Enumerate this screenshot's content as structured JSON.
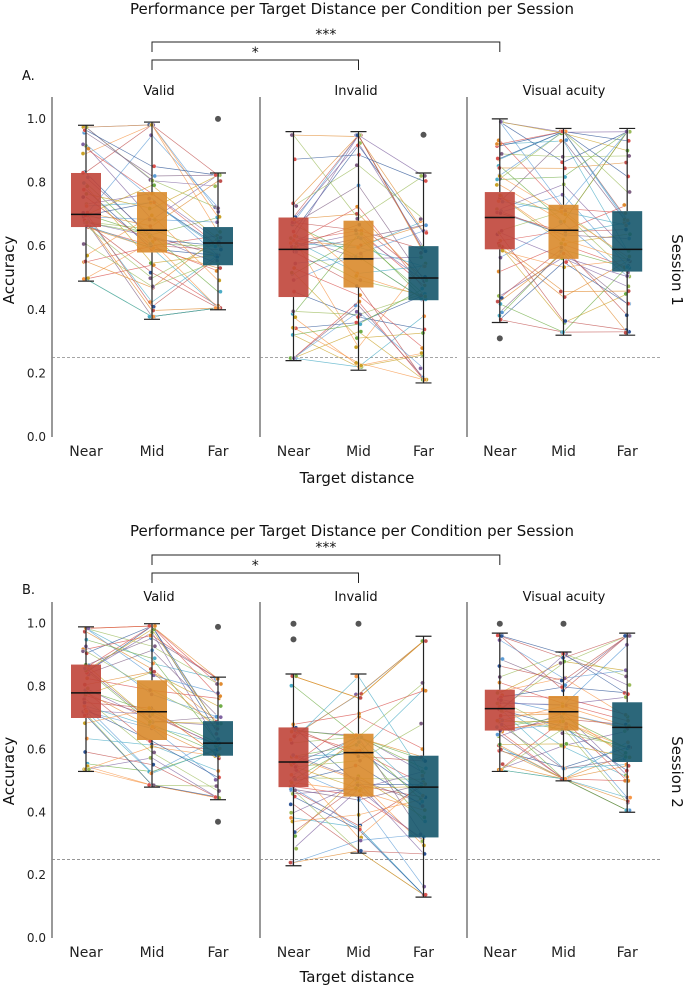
{
  "chart_data": [
    {
      "panel_label": "A.",
      "type": "box",
      "title": "Performance per Target Distance per Condition per Session",
      "xlabel": "Target distance",
      "ylabel": "Accuracy",
      "session_label": "Session 1",
      "ylim": [
        0,
        1.05
      ],
      "yticks": [
        "0.0",
        "0.2",
        "0.4",
        "0.6",
        "0.8",
        "1.0"
      ],
      "chance_level": 0.25,
      "categories": [
        "Near",
        "Mid",
        "Far"
      ],
      "colors": [
        "#c0453a",
        "#d98a2b",
        "#15566b"
      ],
      "significance": [
        {
          "from_group": 0,
          "from_cat": 1,
          "to_group": 1,
          "to_cat": 1,
          "label": "*"
        },
        {
          "from_group": 0,
          "from_cat": 1,
          "to_group": 2,
          "to_cat": 0,
          "label": "***"
        }
      ],
      "groups": [
        {
          "label": "Valid",
          "boxes": [
            {
              "q1": 0.66,
              "median": 0.7,
              "q3": 0.83,
              "whisker_low": 0.49,
              "whisker_high": 0.98,
              "outliers": []
            },
            {
              "q1": 0.58,
              "median": 0.65,
              "q3": 0.77,
              "whisker_low": 0.37,
              "whisker_high": 0.99,
              "outliers": []
            },
            {
              "q1": 0.54,
              "median": 0.61,
              "q3": 0.66,
              "whisker_low": 0.4,
              "whisker_high": 0.83,
              "outliers": [
                1.0
              ]
            }
          ]
        },
        {
          "label": "Invalid",
          "boxes": [
            {
              "q1": 0.44,
              "median": 0.59,
              "q3": 0.69,
              "whisker_low": 0.24,
              "whisker_high": 0.96,
              "outliers": []
            },
            {
              "q1": 0.47,
              "median": 0.56,
              "q3": 0.68,
              "whisker_low": 0.21,
              "whisker_high": 0.96,
              "outliers": []
            },
            {
              "q1": 0.43,
              "median": 0.5,
              "q3": 0.6,
              "whisker_low": 0.17,
              "whisker_high": 0.83,
              "outliers": [
                0.95
              ]
            }
          ]
        },
        {
          "label": "Visual acuity",
          "boxes": [
            {
              "q1": 0.59,
              "median": 0.69,
              "q3": 0.77,
              "whisker_low": 0.36,
              "whisker_high": 1.0,
              "outliers": [
                0.31
              ]
            },
            {
              "q1": 0.56,
              "median": 0.65,
              "q3": 0.73,
              "whisker_low": 0.32,
              "whisker_high": 0.97,
              "outliers": []
            },
            {
              "q1": 0.52,
              "median": 0.59,
              "q3": 0.71,
              "whisker_low": 0.32,
              "whisker_high": 0.97,
              "outliers": []
            }
          ]
        }
      ]
    },
    {
      "panel_label": "B.",
      "type": "box",
      "title": "Performance per Target Distance per Condition per Session",
      "xlabel": "Target distance",
      "ylabel": "Accuracy",
      "session_label": "Session 2",
      "ylim": [
        0,
        1.05
      ],
      "yticks": [
        "0.0",
        "0.2",
        "0.4",
        "0.6",
        "0.8",
        "1.0"
      ],
      "chance_level": 0.25,
      "categories": [
        "Near",
        "Mid",
        "Far"
      ],
      "colors": [
        "#c0453a",
        "#d98a2b",
        "#15566b"
      ],
      "significance": [
        {
          "from_group": 0,
          "from_cat": 1,
          "to_group": 1,
          "to_cat": 1,
          "label": "*"
        },
        {
          "from_group": 0,
          "from_cat": 1,
          "to_group": 2,
          "to_cat": 0,
          "label": "***"
        }
      ],
      "groups": [
        {
          "label": "Valid",
          "boxes": [
            {
              "q1": 0.7,
              "median": 0.78,
              "q3": 0.87,
              "whisker_low": 0.53,
              "whisker_high": 0.99,
              "outliers": []
            },
            {
              "q1": 0.63,
              "median": 0.72,
              "q3": 0.82,
              "whisker_low": 0.48,
              "whisker_high": 1.0,
              "outliers": []
            },
            {
              "q1": 0.58,
              "median": 0.62,
              "q3": 0.69,
              "whisker_low": 0.44,
              "whisker_high": 0.83,
              "outliers": [
                0.99,
                0.37
              ]
            }
          ]
        },
        {
          "label": "Invalid",
          "boxes": [
            {
              "q1": 0.48,
              "median": 0.56,
              "q3": 0.67,
              "whisker_low": 0.23,
              "whisker_high": 0.84,
              "outliers": [
                1.0,
                0.95
              ]
            },
            {
              "q1": 0.45,
              "median": 0.59,
              "q3": 0.65,
              "whisker_low": 0.27,
              "whisker_high": 0.84,
              "outliers": [
                1.0
              ]
            },
            {
              "q1": 0.32,
              "median": 0.48,
              "q3": 0.58,
              "whisker_low": 0.13,
              "whisker_high": 0.96,
              "outliers": []
            }
          ]
        },
        {
          "label": "Visual acuity",
          "boxes": [
            {
              "q1": 0.66,
              "median": 0.73,
              "q3": 0.79,
              "whisker_low": 0.53,
              "whisker_high": 0.97,
              "outliers": [
                1.0
              ]
            },
            {
              "q1": 0.66,
              "median": 0.72,
              "q3": 0.77,
              "whisker_low": 0.5,
              "whisker_high": 0.91,
              "outliers": [
                1.0
              ]
            },
            {
              "q1": 0.56,
              "median": 0.67,
              "q3": 0.75,
              "whisker_low": 0.4,
              "whisker_high": 0.97,
              "outliers": []
            }
          ]
        }
      ]
    }
  ]
}
